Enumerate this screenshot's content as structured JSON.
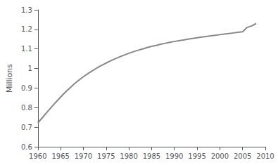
{
  "chart_data": {
    "type": "line",
    "ylabel": "Millions",
    "x": [
      1960,
      1961,
      1962,
      1963,
      1964,
      1965,
      1966,
      1967,
      1968,
      1969,
      1970,
      1971,
      1972,
      1973,
      1974,
      1975,
      1976,
      1977,
      1978,
      1979,
      1980,
      1981,
      1982,
      1983,
      1984,
      1985,
      1986,
      1987,
      1988,
      1989,
      1990,
      1991,
      1992,
      1993,
      1994,
      1995,
      1996,
      1997,
      1998,
      1999,
      2000,
      2001,
      2002,
      2003,
      2004,
      2005,
      2006,
      2007,
      2008
    ],
    "values": [
      0.722,
      0.749,
      0.776,
      0.803,
      0.829,
      0.854,
      0.878,
      0.9,
      0.921,
      0.94,
      0.958,
      0.974,
      0.989,
      1.003,
      1.016,
      1.028,
      1.039,
      1.05,
      1.06,
      1.069,
      1.078,
      1.086,
      1.093,
      1.1,
      1.107,
      1.113,
      1.118,
      1.124,
      1.129,
      1.134,
      1.138,
      1.142,
      1.146,
      1.15,
      1.154,
      1.157,
      1.161,
      1.164,
      1.167,
      1.17,
      1.173,
      1.176,
      1.179,
      1.182,
      1.185,
      1.188,
      1.21,
      1.218,
      1.23
    ],
    "color": "#888888",
    "xlim": [
      1960,
      2010
    ],
    "ylim": [
      0.6,
      1.3
    ],
    "xticks": [
      1960,
      1965,
      1970,
      1975,
      1980,
      1985,
      1990,
      1995,
      2000,
      2005,
      2010
    ],
    "yticks": [
      0.6,
      0.7,
      0.8,
      0.9,
      1.0,
      1.1,
      1.2,
      1.3
    ],
    "grid": false
  }
}
